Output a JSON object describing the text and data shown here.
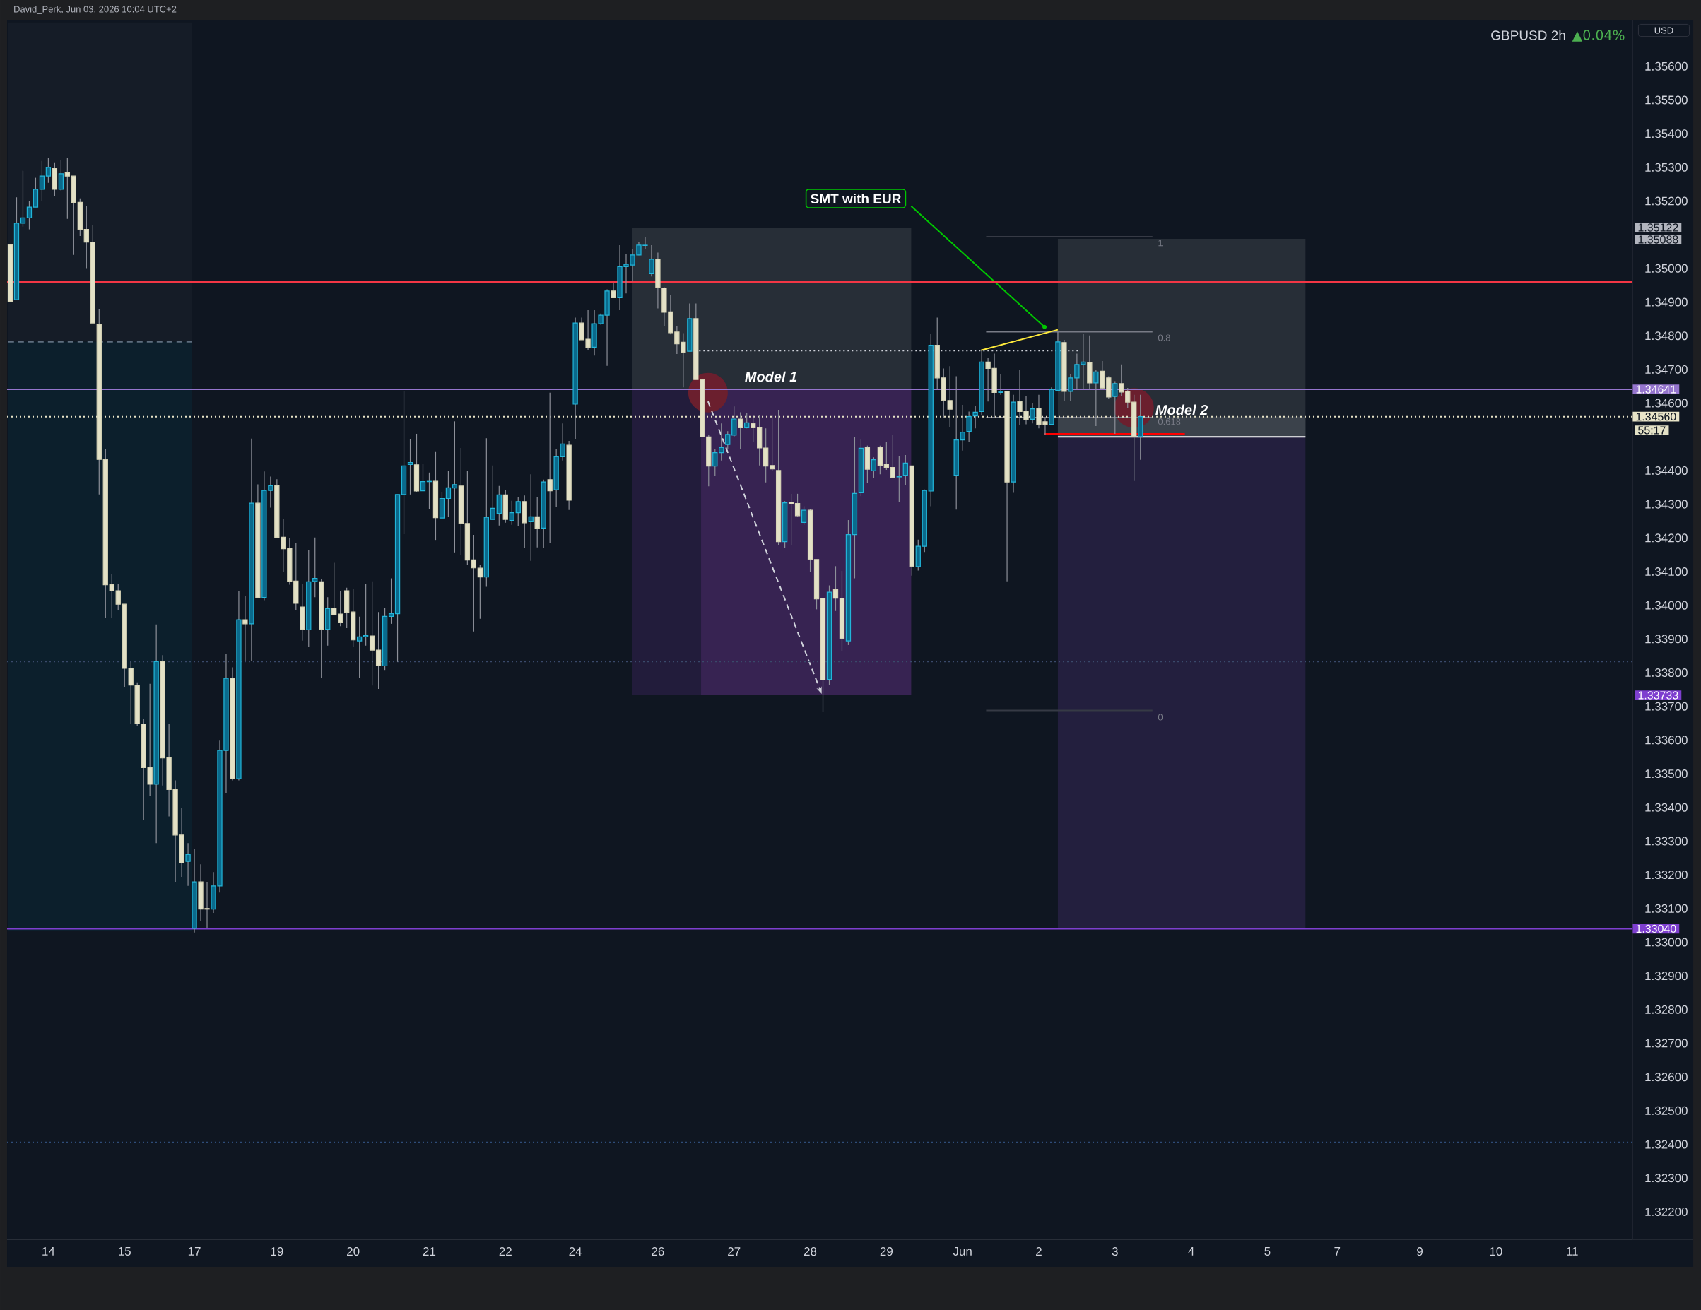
{
  "chart_data": {
    "type": "candlestick",
    "title": "GBPUSD 2h",
    "subtitle": "▲0.04%",
    "ylabel": "USD",
    "ylim": [
      1.32118,
      1.35738
    ],
    "categories": [
      null,
      null,
      null,
      null,
      null,
      null,
      "14",
      null,
      null,
      null,
      null,
      null,
      null,
      null,
      null,
      null,
      null,
      null,
      "15",
      null,
      null,
      null,
      null,
      null,
      null,
      null,
      null,
      null,
      null,
      "17",
      null,
      null,
      null,
      null,
      null,
      null,
      null,
      null,
      null,
      null,
      null,
      null,
      "19",
      null,
      null,
      null,
      null,
      null,
      null,
      null,
      null,
      null,
      null,
      null,
      "20",
      null,
      null,
      null,
      null,
      null,
      null,
      null,
      null,
      null,
      null,
      null,
      "21",
      null,
      null,
      null,
      null,
      null,
      null,
      null,
      null,
      null,
      null,
      null,
      "22",
      null,
      null,
      null,
      null,
      null,
      null,
      null,
      null,
      null,
      null,
      "24",
      null,
      null,
      null,
      null,
      null,
      null,
      null,
      null,
      null,
      null,
      null,
      null,
      "26",
      null,
      null,
      null,
      null,
      null,
      null,
      null,
      null,
      null,
      null,
      null,
      "27",
      null,
      null,
      null,
      null,
      null,
      null,
      null,
      null,
      null,
      null,
      null,
      "28",
      null,
      null,
      null,
      null,
      null,
      null,
      null,
      null,
      null,
      null,
      null,
      "29",
      null,
      null,
      null,
      null,
      null,
      null,
      null,
      null,
      null,
      null,
      null,
      "Jun",
      null,
      null,
      null,
      null,
      null,
      null,
      null,
      null,
      null,
      null,
      null,
      "2",
      null,
      null,
      null,
      null,
      null,
      null,
      null,
      null,
      null,
      null,
      null,
      "3",
      null,
      null,
      null,
      null,
      null,
      null,
      null,
      null,
      null,
      null,
      null,
      "4",
      null,
      null,
      null,
      null,
      null,
      null,
      null,
      null,
      null,
      null,
      null,
      "5",
      null,
      null,
      null,
      null,
      null,
      null,
      null,
      null,
      null,
      null,
      "7",
      null,
      null,
      null,
      null,
      null,
      null,
      null,
      null,
      null,
      null,
      null,
      null,
      "9",
      null,
      null,
      null,
      null,
      null,
      null,
      null,
      null,
      null,
      null,
      null,
      "10",
      null,
      null,
      null,
      null,
      null,
      null,
      null,
      null,
      null,
      null,
      null,
      "11",
      null,
      null,
      null,
      null,
      null,
      null,
      null,
      null,
      null
    ],
    "yticks": [
      {
        "value": 1.322,
        "label": "1.32200"
      },
      {
        "value": 1.323,
        "label": "1.32300"
      },
      {
        "value": 1.324,
        "label": "1.32400"
      },
      {
        "value": 1.325,
        "label": "1.32500"
      },
      {
        "value": 1.326,
        "label": "1.32600"
      },
      {
        "value": 1.327,
        "label": "1.32700"
      },
      {
        "value": 1.328,
        "label": "1.32800"
      },
      {
        "value": 1.329,
        "label": "1.32900"
      },
      {
        "value": 1.33,
        "label": "1.33000"
      },
      {
        "value": 1.331,
        "label": "1.33100"
      },
      {
        "value": 1.332,
        "label": "1.33200"
      },
      {
        "value": 1.333,
        "label": "1.33300"
      },
      {
        "value": 1.334,
        "label": "1.33400"
      },
      {
        "value": 1.335,
        "label": "1.33500"
      },
      {
        "value": 1.336,
        "label": "1.33600"
      },
      {
        "value": 1.337,
        "label": "1.33700"
      },
      {
        "value": 1.338,
        "label": "1.33800"
      },
      {
        "value": 1.339,
        "label": "1.33900"
      },
      {
        "value": 1.34,
        "label": "1.34000"
      },
      {
        "value": 1.341,
        "label": "1.34100"
      },
      {
        "value": 1.342,
        "label": "1.34200"
      },
      {
        "value": 1.343,
        "label": "1.34300"
      },
      {
        "value": 1.344,
        "label": "1.34400"
      },
      {
        "value": 1.346,
        "label": "1.34600"
      },
      {
        "value": 1.347,
        "label": "1.34700"
      },
      {
        "value": 1.348,
        "label": "1.34800"
      },
      {
        "value": 1.349,
        "label": "1.34900"
      },
      {
        "value": 1.35,
        "label": "1.35000"
      },
      {
        "value": 1.352,
        "label": "1.35200"
      },
      {
        "value": 1.353,
        "label": "1.35300"
      },
      {
        "value": 1.354,
        "label": "1.35400"
      },
      {
        "value": 1.355,
        "label": "1.35500"
      },
      {
        "value": 1.356,
        "label": "1.35600"
      }
    ],
    "ohlc": [
      [
        1.3507,
        1.3507,
        1.34902,
        1.34902
      ],
      [
        1.34907,
        1.35211,
        1.34907,
        1.35134
      ],
      [
        1.35134,
        1.3529,
        1.35124,
        1.3515
      ],
      [
        1.3515,
        1.352,
        1.35116,
        1.35182
      ],
      [
        1.35182,
        1.35269,
        1.35182,
        1.35235
      ],
      [
        1.35235,
        1.35319,
        1.352,
        1.35274
      ],
      [
        1.35274,
        1.35327,
        1.35254,
        1.353
      ],
      [
        1.35296,
        1.35315,
        1.35215,
        1.35235
      ],
      [
        1.35235,
        1.35322,
        1.35231,
        1.35281
      ],
      [
        1.35284,
        1.35327,
        1.35147,
        1.35274
      ],
      [
        1.35274,
        1.35274,
        1.3504,
        1.35196
      ],
      [
        1.35196,
        1.35208,
        1.35096,
        1.35116
      ],
      [
        1.35116,
        1.35185,
        1.35001,
        1.35078
      ],
      [
        1.35078,
        1.35128,
        1.34838,
        1.34838
      ],
      [
        1.34833,
        1.34879,
        1.34329,
        1.34433
      ],
      [
        1.34433,
        1.34465,
        1.33962,
        1.34061
      ],
      [
        1.34061,
        1.34092,
        1.33962,
        1.34043
      ],
      [
        1.34043,
        1.34064,
        1.33985,
        1.34003
      ],
      [
        1.34003,
        1.34003,
        1.33758,
        1.33813
      ],
      [
        1.33813,
        1.33832,
        1.33648,
        1.33763
      ],
      [
        1.33763,
        1.33771,
        1.33641,
        1.33648
      ],
      [
        1.33648,
        1.33663,
        1.33362,
        1.33518
      ],
      [
        1.33518,
        1.33767,
        1.33434,
        1.33469
      ],
      [
        1.33469,
        1.33943,
        1.33294,
        1.33833
      ],
      [
        1.33833,
        1.33852,
        1.33465,
        1.33547
      ],
      [
        1.33547,
        1.33648,
        1.33373,
        1.33453
      ],
      [
        1.33453,
        1.3348,
        1.33179,
        1.33318
      ],
      [
        1.33318,
        1.33399,
        1.33194,
        1.33235
      ],
      [
        1.3324,
        1.33294,
        1.33167,
        1.3326
      ],
      [
        1.33041,
        1.33277,
        1.33029,
        1.33179
      ],
      [
        1.33179,
        1.33231,
        1.33064,
        1.33098
      ],
      [
        1.331,
        1.33179,
        1.33041,
        1.33098
      ],
      [
        1.33098,
        1.33208,
        1.33087,
        1.33167
      ],
      [
        1.33167,
        1.33598,
        1.33147,
        1.33569
      ],
      [
        1.33569,
        1.33855,
        1.33442,
        1.33783
      ],
      [
        1.33783,
        1.33816,
        1.3348,
        1.33485
      ],
      [
        1.33485,
        1.34043,
        1.3348,
        1.33957
      ],
      [
        1.33957,
        1.34027,
        1.33835,
        1.33945
      ],
      [
        1.33945,
        1.34495,
        1.33835,
        1.34303
      ],
      [
        1.34303,
        1.34359,
        1.34023,
        1.34023
      ],
      [
        1.34023,
        1.34397,
        1.34015,
        1.34341
      ],
      [
        1.34341,
        1.34382,
        1.3429,
        1.34355
      ],
      [
        1.34355,
        1.34374,
        1.34202,
        1.34202
      ],
      [
        1.34202,
        1.34257,
        1.34099,
        1.34168
      ],
      [
        1.34168,
        1.34199,
        1.34061,
        1.34072
      ],
      [
        1.34072,
        1.34186,
        1.33985,
        1.34006
      ],
      [
        1.33995,
        1.34064,
        1.33895,
        1.33929
      ],
      [
        1.33927,
        1.34163,
        1.33876,
        1.3407
      ],
      [
        1.34071,
        1.34201,
        1.34024,
        1.3408
      ],
      [
        1.3407,
        1.34077,
        1.33783,
        1.33929
      ],
      [
        1.33929,
        1.34024,
        1.3388,
        1.3399
      ],
      [
        1.33991,
        1.34126,
        1.33971,
        1.33972
      ],
      [
        1.33974,
        1.34042,
        1.33938,
        1.33948
      ],
      [
        1.34043,
        1.34052,
        1.33932,
        1.33979
      ],
      [
        1.3398,
        1.34048,
        1.33876,
        1.33897
      ],
      [
        1.33894,
        1.33966,
        1.33783,
        1.33906
      ],
      [
        1.33906,
        1.34063,
        1.3388,
        1.3391
      ],
      [
        1.33909,
        1.34071,
        1.33762,
        1.33867
      ],
      [
        1.33867,
        1.3398,
        1.33752,
        1.33821
      ],
      [
        1.3382,
        1.33993,
        1.33808,
        1.33967
      ],
      [
        1.33967,
        1.3408,
        1.33945,
        1.33975
      ],
      [
        1.33975,
        1.34329,
        1.33832,
        1.34329
      ],
      [
        1.34329,
        1.34636,
        1.34211,
        1.34414
      ],
      [
        1.34418,
        1.34494,
        1.34329,
        1.34424
      ],
      [
        1.34417,
        1.34509,
        1.34337,
        1.34339
      ],
      [
        1.3434,
        1.34421,
        1.3434,
        1.34367
      ],
      [
        1.34367,
        1.34394,
        1.34285,
        1.34368
      ],
      [
        1.34368,
        1.34457,
        1.34194,
        1.3426
      ],
      [
        1.34259,
        1.34335,
        1.34259,
        1.34317
      ],
      [
        1.34317,
        1.34398,
        1.34262,
        1.34349
      ],
      [
        1.34348,
        1.34546,
        1.34157,
        1.34358
      ],
      [
        1.34354,
        1.34467,
        1.3415,
        1.34243
      ],
      [
        1.34243,
        1.34398,
        1.34121,
        1.34134
      ],
      [
        1.34135,
        1.34209,
        1.33922,
        1.34111
      ],
      [
        1.3411,
        1.34121,
        1.3396,
        1.34084
      ],
      [
        1.34084,
        1.34496,
        1.34055,
        1.34261
      ],
      [
        1.34255,
        1.34415,
        1.34254,
        1.34288
      ],
      [
        1.34273,
        1.34354,
        1.34237,
        1.34328
      ],
      [
        1.34328,
        1.34341,
        1.34245,
        1.34255
      ],
      [
        1.34252,
        1.3431,
        1.34239,
        1.34275
      ],
      [
        1.34275,
        1.34322,
        1.34235,
        1.34308
      ],
      [
        1.34308,
        1.34326,
        1.3417,
        1.34245
      ],
      [
        1.34248,
        1.34389,
        1.34132,
        1.34263
      ],
      [
        1.34263,
        1.34322,
        1.34172,
        1.34229
      ],
      [
        1.34229,
        1.34373,
        1.3417,
        1.34366
      ],
      [
        1.34373,
        1.34631,
        1.34185,
        1.3434
      ],
      [
        1.34343,
        1.34465,
        1.34291,
        1.34441
      ],
      [
        1.34441,
        1.3454,
        1.3443,
        1.34479
      ],
      [
        1.34475,
        1.34488,
        1.34283,
        1.34312
      ],
      [
        1.34597,
        1.34854,
        1.34493,
        1.34838
      ],
      [
        1.34838,
        1.34854,
        1.34788,
        1.34788
      ],
      [
        1.3479,
        1.34876,
        1.34758,
        1.34766
      ],
      [
        1.34766,
        1.34876,
        1.34741,
        1.34836
      ],
      [
        1.34836,
        1.34866,
        1.34833,
        1.34861
      ],
      [
        1.34861,
        1.34938,
        1.34711,
        1.34933
      ],
      [
        1.34933,
        1.34956,
        1.34913,
        1.34913
      ],
      [
        1.34913,
        1.35069,
        1.34876,
        1.35005
      ],
      [
        1.35005,
        1.35042,
        1.34926,
        1.35012
      ],
      [
        1.3501,
        1.35057,
        1.34961,
        1.3504
      ],
      [
        1.3504,
        1.35079,
        1.35039,
        1.35069
      ],
      [
        1.35068,
        1.35092,
        1.35057,
        1.35069
      ],
      [
        1.34984,
        1.35069,
        1.34976,
        1.35027
      ],
      [
        1.35027,
        1.35047,
        1.34881,
        1.34944
      ],
      [
        1.34942,
        1.34944,
        1.34828,
        1.3487
      ],
      [
        1.34871,
        1.34921,
        1.34804,
        1.34809
      ],
      [
        1.34811,
        1.34828,
        1.34746,
        1.34776
      ],
      [
        1.34781,
        1.34808,
        1.34647,
        1.34751
      ],
      [
        1.34754,
        1.34896,
        1.34754,
        1.34851
      ],
      [
        1.34851,
        1.34896,
        1.3467,
        1.3467
      ],
      [
        1.3467,
        1.3467,
        1.345,
        1.345
      ],
      [
        1.345,
        1.34505,
        1.34353,
        1.34413
      ],
      [
        1.34413,
        1.34465,
        1.34385,
        1.34453
      ],
      [
        1.34453,
        1.3454,
        1.3443,
        1.34468
      ],
      [
        1.34477,
        1.34517,
        1.34465,
        1.34507
      ],
      [
        1.34505,
        1.3459,
        1.345,
        1.34553
      ],
      [
        1.34553,
        1.34573,
        1.34465,
        1.34527
      ],
      [
        1.34527,
        1.3457,
        1.34525,
        1.34542
      ],
      [
        1.3454,
        1.34565,
        1.34485,
        1.34527
      ],
      [
        1.34527,
        1.34565,
        1.34415,
        1.34467
      ],
      [
        1.34467,
        1.34525,
        1.34365,
        1.34413
      ],
      [
        1.34415,
        1.34563,
        1.344,
        1.34405
      ],
      [
        1.344,
        1.3458,
        1.34179,
        1.34189
      ],
      [
        1.34189,
        1.34309,
        1.34169,
        1.34304
      ],
      [
        1.34306,
        1.34331,
        1.34179,
        1.34301
      ],
      [
        1.34302,
        1.34331,
        1.34264,
        1.34266
      ],
      [
        1.34246,
        1.34294,
        1.34239,
        1.34282
      ],
      [
        1.34282,
        1.34286,
        1.34099,
        1.34136
      ],
      [
        1.34136,
        1.34136,
        1.33988,
        1.34019
      ],
      [
        1.34021,
        1.34021,
        1.33683,
        1.33778
      ],
      [
        1.3378,
        1.34059,
        1.33763,
        1.34039
      ],
      [
        1.34046,
        1.34116,
        1.33983,
        1.34021
      ],
      [
        1.34021,
        1.34102,
        1.33865,
        1.33901
      ],
      [
        1.33894,
        1.34253,
        1.33882,
        1.3421
      ],
      [
        1.3421,
        1.34499,
        1.3408,
        1.34332
      ],
      [
        1.34334,
        1.34492,
        1.34324,
        1.34466
      ],
      [
        1.34469,
        1.34474,
        1.34364,
        1.34404
      ],
      [
        1.34399,
        1.34439,
        1.34379,
        1.34432
      ],
      [
        1.34469,
        1.34474,
        1.34389,
        1.34416
      ],
      [
        1.34419,
        1.34486,
        1.34402,
        1.34409
      ],
      [
        1.34409,
        1.34506,
        1.34379,
        1.34379
      ],
      [
        1.34381,
        1.34444,
        1.34306,
        1.34382
      ],
      [
        1.34386,
        1.34446,
        1.34356,
        1.34422
      ],
      [
        1.34414,
        1.34414,
        1.34088,
        1.34115
      ],
      [
        1.34115,
        1.34195,
        1.34103,
        1.34175
      ],
      [
        1.34175,
        1.34344,
        1.34158,
        1.34341
      ],
      [
        1.34339,
        1.34806,
        1.34294,
        1.34772
      ],
      [
        1.34772,
        1.34854,
        1.3464,
        1.34675
      ],
      [
        1.34675,
        1.34703,
        1.34555,
        1.34608
      ],
      [
        1.34608,
        1.3471,
        1.34529,
        1.34582
      ],
      [
        1.34386,
        1.3468,
        1.34284,
        1.34491
      ],
      [
        1.34491,
        1.34595,
        1.34459,
        1.34514
      ],
      [
        1.34516,
        1.34575,
        1.34484,
        1.3456
      ],
      [
        1.34562,
        1.34592,
        1.34525,
        1.34573
      ],
      [
        1.34575,
        1.34757,
        1.34565,
        1.34722
      ],
      [
        1.34722,
        1.34735,
        1.34605,
        1.34703
      ],
      [
        1.34703,
        1.34747,
        1.34557,
        1.34632
      ],
      [
        1.34632,
        1.34685,
        1.34625,
        1.34635
      ],
      [
        1.34635,
        1.34635,
        1.34071,
        1.34366
      ],
      [
        1.34366,
        1.34625,
        1.34334,
        1.34603
      ],
      [
        1.34605,
        1.347,
        1.34535,
        1.34575
      ],
      [
        1.34575,
        1.3462,
        1.34537,
        1.34552
      ],
      [
        1.34552,
        1.346,
        1.3454,
        1.34583
      ],
      [
        1.34583,
        1.34625,
        1.34525,
        1.34537
      ],
      [
        1.34545,
        1.34555,
        1.34506,
        1.34537
      ],
      [
        1.34537,
        1.34647,
        1.34535,
        1.3464
      ],
      [
        1.34638,
        1.34811,
        1.34638,
        1.34782
      ],
      [
        1.3478,
        1.34788,
        1.34607,
        1.34635
      ],
      [
        1.34635,
        1.34685,
        1.34607,
        1.34675
      ],
      [
        1.34675,
        1.34747,
        1.3464,
        1.34715
      ],
      [
        1.34715,
        1.34806,
        1.3464,
        1.34722
      ],
      [
        1.3472,
        1.34801,
        1.3464,
        1.3466
      ],
      [
        1.3466,
        1.347,
        1.34532,
        1.34693
      ],
      [
        1.34695,
        1.34725,
        1.3464,
        1.34645
      ],
      [
        1.34675,
        1.3468,
        1.34613,
        1.34618
      ],
      [
        1.3462,
        1.34665,
        1.34509,
        1.34658
      ],
      [
        1.34658,
        1.34715,
        1.3462,
        1.34633
      ],
      [
        1.34635,
        1.34645,
        1.34585,
        1.34603
      ],
      [
        1.34603,
        1.34625,
        1.34369,
        1.34501
      ],
      [
        1.34501,
        1.34625,
        1.34432,
        1.3456
      ],
      null,
      null,
      null,
      null,
      null,
      null,
      null,
      null,
      null,
      null,
      null,
      null,
      null,
      null,
      null,
      null,
      null,
      null,
      null,
      null,
      null,
      null,
      null,
      null,
      null,
      null,
      null,
      null,
      null,
      null,
      null,
      null,
      null,
      null,
      null,
      null,
      null,
      null,
      null,
      null,
      null,
      null,
      null,
      null,
      null,
      null,
      null,
      null,
      null,
      null,
      null,
      null,
      null,
      null,
      null,
      null,
      null,
      null,
      null,
      null,
      null,
      null,
      null,
      null,
      null,
      null,
      null,
      null,
      null,
      null,
      null,
      null,
      null,
      null,
      null,
      null,
      null
    ],
    "ref_lines": [
      {
        "axis": "y",
        "value": 1.3496,
        "color": "#f23645"
      },
      {
        "axis": "y",
        "value": 1.34641,
        "label": "1.34641",
        "color": "#9575cd"
      },
      {
        "axis": "y",
        "value": 1.3304,
        "label": "1.33040",
        "color": "#7e3fcf"
      },
      {
        "axis": "y",
        "value": 1.33833,
        "color": "#3a4a6b",
        "line_style": "dotted"
      },
      {
        "axis": "y",
        "value": 1.32406,
        "color": "#2f4d7a",
        "line_style": "dotted"
      },
      {
        "axis": "y",
        "value": 1.3456,
        "label": "1.34560",
        "color": "#e8e4c8",
        "line_style": "dotted"
      }
    ],
    "annotations": [
      "David_Perk, Jun 03, 2026 10:04 UTC+2",
      "SMT with EUR",
      "Model 1",
      {
        "text": "Model 2",
        "y": 1.3456
      },
      "1",
      "0.8",
      {
        "text": "0.618",
        "y": 1.3456
      },
      "0",
      "1.35122",
      "1.35088",
      "1.33733",
      "55:17"
    ]
  }
}
